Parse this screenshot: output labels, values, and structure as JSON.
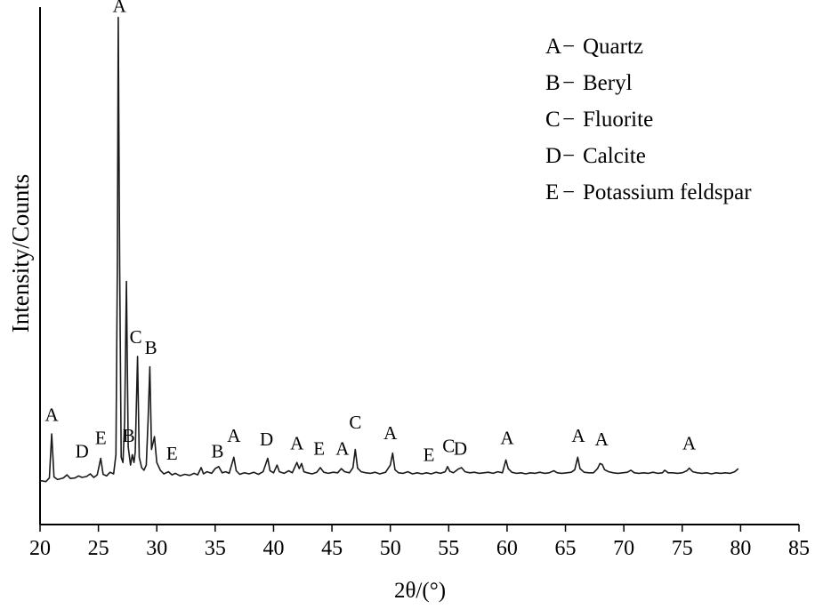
{
  "chart_data": {
    "type": "line",
    "xlabel": "2θ/(°)",
    "ylabel": "Intensity/Counts",
    "xlim": [
      20,
      85
    ],
    "ylim": [
      0,
      100
    ],
    "xticks": [
      20,
      25,
      30,
      35,
      40,
      45,
      50,
      55,
      60,
      65,
      70,
      75,
      80,
      85
    ],
    "grid": false,
    "legend_position": "top-right",
    "legend": [
      {
        "key": "A",
        "dash": "−",
        "label": "Quartz"
      },
      {
        "key": "B",
        "dash": "−",
        "label": "Beryl"
      },
      {
        "key": "C",
        "dash": "−",
        "label": "Fluorite"
      },
      {
        "key": "D",
        "dash": "−",
        "label": "Calcite"
      },
      {
        "key": "E",
        "dash": "−",
        "label": "Potassium feldspar"
      }
    ],
    "series": [
      {
        "color": "#1a1a1a",
        "points": [
          [
            20.0,
            8.5
          ],
          [
            20.5,
            8.3
          ],
          [
            20.8,
            9.0
          ],
          [
            21.0,
            17.5
          ],
          [
            21.2,
            9.2
          ],
          [
            21.5,
            8.7
          ],
          [
            22.0,
            9.0
          ],
          [
            22.3,
            9.6
          ],
          [
            22.6,
            8.9
          ],
          [
            23.0,
            9.0
          ],
          [
            23.3,
            9.4
          ],
          [
            23.6,
            9.1
          ],
          [
            24.0,
            9.3
          ],
          [
            24.3,
            9.8
          ],
          [
            24.6,
            9.1
          ],
          [
            24.9,
            9.6
          ],
          [
            25.2,
            12.8
          ],
          [
            25.4,
            9.7
          ],
          [
            25.7,
            9.4
          ],
          [
            26.0,
            10.1
          ],
          [
            26.3,
            9.8
          ],
          [
            26.5,
            13.5
          ],
          [
            26.62,
            50.0
          ],
          [
            26.7,
            98.0
          ],
          [
            26.82,
            50.0
          ],
          [
            26.95,
            13.0
          ],
          [
            27.1,
            12.0
          ],
          [
            27.25,
            20.0
          ],
          [
            27.4,
            47.0
          ],
          [
            27.55,
            15.0
          ],
          [
            27.75,
            11.5
          ],
          [
            27.9,
            13.5
          ],
          [
            28.05,
            12.0
          ],
          [
            28.15,
            14.0
          ],
          [
            28.35,
            32.5
          ],
          [
            28.5,
            13.0
          ],
          [
            28.7,
            11.0
          ],
          [
            28.9,
            10.5
          ],
          [
            29.1,
            11.5
          ],
          [
            29.25,
            20.0
          ],
          [
            29.4,
            30.5
          ],
          [
            29.55,
            14.5
          ],
          [
            29.8,
            17.0
          ],
          [
            30.0,
            12.0
          ],
          [
            30.3,
            10.5
          ],
          [
            30.6,
            9.8
          ],
          [
            31.0,
            10.2
          ],
          [
            31.3,
            9.6
          ],
          [
            31.6,
            9.9
          ],
          [
            32.0,
            9.4
          ],
          [
            32.4,
            9.7
          ],
          [
            32.8,
            9.5
          ],
          [
            33.2,
            9.9
          ],
          [
            33.5,
            9.6
          ],
          [
            33.8,
            11.0
          ],
          [
            34.0,
            9.8
          ],
          [
            34.3,
            10.2
          ],
          [
            34.7,
            9.9
          ],
          [
            35.0,
            10.8
          ],
          [
            35.3,
            11.2
          ],
          [
            35.6,
            10.0
          ],
          [
            35.9,
            10.2
          ],
          [
            36.2,
            9.9
          ],
          [
            36.6,
            13.0
          ],
          [
            36.8,
            10.4
          ],
          [
            37.1,
            9.7
          ],
          [
            37.5,
            10.0
          ],
          [
            37.9,
            9.8
          ],
          [
            38.3,
            10.1
          ],
          [
            38.7,
            9.7
          ],
          [
            39.1,
            10.2
          ],
          [
            39.5,
            12.8
          ],
          [
            39.7,
            10.4
          ],
          [
            40.0,
            10.0
          ],
          [
            40.3,
            11.5
          ],
          [
            40.5,
            10.2
          ],
          [
            40.9,
            9.9
          ],
          [
            41.3,
            10.4
          ],
          [
            41.6,
            10.0
          ],
          [
            42.0,
            12.0
          ],
          [
            42.2,
            10.8
          ],
          [
            42.4,
            11.8
          ],
          [
            42.6,
            10.2
          ],
          [
            42.9,
            10.0
          ],
          [
            43.3,
            9.8
          ],
          [
            43.7,
            10.1
          ],
          [
            44.0,
            11.0
          ],
          [
            44.3,
            10.1
          ],
          [
            44.7,
            9.9
          ],
          [
            45.1,
            10.1
          ],
          [
            45.5,
            10.0
          ],
          [
            45.8,
            10.8
          ],
          [
            46.1,
            10.2
          ],
          [
            46.5,
            10.0
          ],
          [
            46.8,
            11.0
          ],
          [
            47.0,
            14.5
          ],
          [
            47.2,
            10.9
          ],
          [
            47.5,
            10.2
          ],
          [
            47.9,
            10.0
          ],
          [
            48.3,
            9.9
          ],
          [
            48.7,
            10.1
          ],
          [
            49.1,
            9.8
          ],
          [
            49.6,
            10.1
          ],
          [
            50.0,
            11.5
          ],
          [
            50.2,
            13.8
          ],
          [
            50.4,
            10.6
          ],
          [
            50.7,
            10.0
          ],
          [
            51.1,
            9.9
          ],
          [
            51.5,
            10.2
          ],
          [
            51.9,
            9.8
          ],
          [
            52.3,
            10.0
          ],
          [
            52.7,
            9.8
          ],
          [
            53.1,
            10.0
          ],
          [
            53.5,
            9.8
          ],
          [
            53.9,
            10.1
          ],
          [
            54.3,
            9.9
          ],
          [
            54.7,
            10.2
          ],
          [
            54.9,
            11.2
          ],
          [
            55.1,
            10.3
          ],
          [
            55.4,
            10.0
          ],
          [
            55.8,
            10.7
          ],
          [
            56.1,
            11.0
          ],
          [
            56.4,
            10.2
          ],
          [
            56.8,
            10.0
          ],
          [
            57.2,
            10.1
          ],
          [
            57.6,
            9.9
          ],
          [
            58.0,
            10.0
          ],
          [
            58.4,
            10.1
          ],
          [
            58.8,
            9.9
          ],
          [
            59.2,
            10.2
          ],
          [
            59.6,
            10.0
          ],
          [
            59.9,
            12.5
          ],
          [
            60.1,
            10.8
          ],
          [
            60.4,
            10.1
          ],
          [
            60.8,
            9.9
          ],
          [
            61.2,
            10.0
          ],
          [
            61.6,
            9.8
          ],
          [
            62.0,
            10.0
          ],
          [
            62.4,
            9.9
          ],
          [
            62.8,
            10.1
          ],
          [
            63.2,
            9.9
          ],
          [
            63.6,
            10.0
          ],
          [
            64.0,
            10.4
          ],
          [
            64.3,
            10.0
          ],
          [
            64.7,
            9.9
          ],
          [
            65.1,
            10.0
          ],
          [
            65.5,
            10.1
          ],
          [
            65.8,
            10.6
          ],
          [
            66.05,
            13.0
          ],
          [
            66.25,
            10.8
          ],
          [
            66.6,
            10.1
          ],
          [
            67.0,
            10.0
          ],
          [
            67.4,
            10.0
          ],
          [
            67.75,
            10.8
          ],
          [
            67.95,
            11.8
          ],
          [
            68.15,
            11.6
          ],
          [
            68.35,
            10.6
          ],
          [
            68.7,
            10.2
          ],
          [
            69.1,
            10.0
          ],
          [
            69.5,
            9.9
          ],
          [
            69.9,
            10.0
          ],
          [
            70.3,
            10.1
          ],
          [
            70.6,
            10.5
          ],
          [
            70.9,
            10.0
          ],
          [
            71.3,
            9.9
          ],
          [
            71.7,
            10.0
          ],
          [
            72.1,
            9.9
          ],
          [
            72.5,
            10.1
          ],
          [
            72.9,
            9.9
          ],
          [
            73.3,
            10.0
          ],
          [
            73.5,
            10.5
          ],
          [
            73.8,
            10.0
          ],
          [
            74.2,
            10.0
          ],
          [
            74.6,
            9.9
          ],
          [
            75.0,
            10.0
          ],
          [
            75.4,
            10.4
          ],
          [
            75.6,
            10.9
          ],
          [
            75.9,
            10.2
          ],
          [
            76.3,
            10.0
          ],
          [
            76.7,
            9.9
          ],
          [
            77.1,
            10.0
          ],
          [
            77.5,
            9.8
          ],
          [
            77.9,
            10.0
          ],
          [
            78.3,
            9.9
          ],
          [
            78.7,
            10.0
          ],
          [
            79.1,
            9.9
          ],
          [
            79.5,
            10.2
          ],
          [
            79.8,
            10.8
          ]
        ]
      }
    ],
    "annotations": [
      {
        "text": "A",
        "x": 21.0,
        "y": 19.5
      },
      {
        "text": "D",
        "x": 23.6,
        "y": 12.5
      },
      {
        "text": "E",
        "x": 25.2,
        "y": 15.0
      },
      {
        "text": "A",
        "x": 26.8,
        "y": 98.5
      },
      {
        "text": "B",
        "x": 27.6,
        "y": 15.5
      },
      {
        "text": "C",
        "x": 28.2,
        "y": 34.5
      },
      {
        "text": "B",
        "x": 29.5,
        "y": 32.5
      },
      {
        "text": "E",
        "x": 31.3,
        "y": 12.0
      },
      {
        "text": "B",
        "x": 35.2,
        "y": 12.5
      },
      {
        "text": "A",
        "x": 36.6,
        "y": 15.5
      },
      {
        "text": "D",
        "x": 39.4,
        "y": 14.8
      },
      {
        "text": "A",
        "x": 42.0,
        "y": 14.0
      },
      {
        "text": "E",
        "x": 43.9,
        "y": 13.0
      },
      {
        "text": "A",
        "x": 45.9,
        "y": 13.0
      },
      {
        "text": "C",
        "x": 47.0,
        "y": 18.0
      },
      {
        "text": "A",
        "x": 50.0,
        "y": 16.0
      },
      {
        "text": "E",
        "x": 53.3,
        "y": 11.8
      },
      {
        "text": "C",
        "x": 55.0,
        "y": 13.5
      },
      {
        "text": "D",
        "x": 56.0,
        "y": 13.0
      },
      {
        "text": "A",
        "x": 60.0,
        "y": 15.0
      },
      {
        "text": "A",
        "x": 66.1,
        "y": 15.5
      },
      {
        "text": "A",
        "x": 68.1,
        "y": 14.8
      },
      {
        "text": "A",
        "x": 75.6,
        "y": 14.0
      }
    ]
  }
}
